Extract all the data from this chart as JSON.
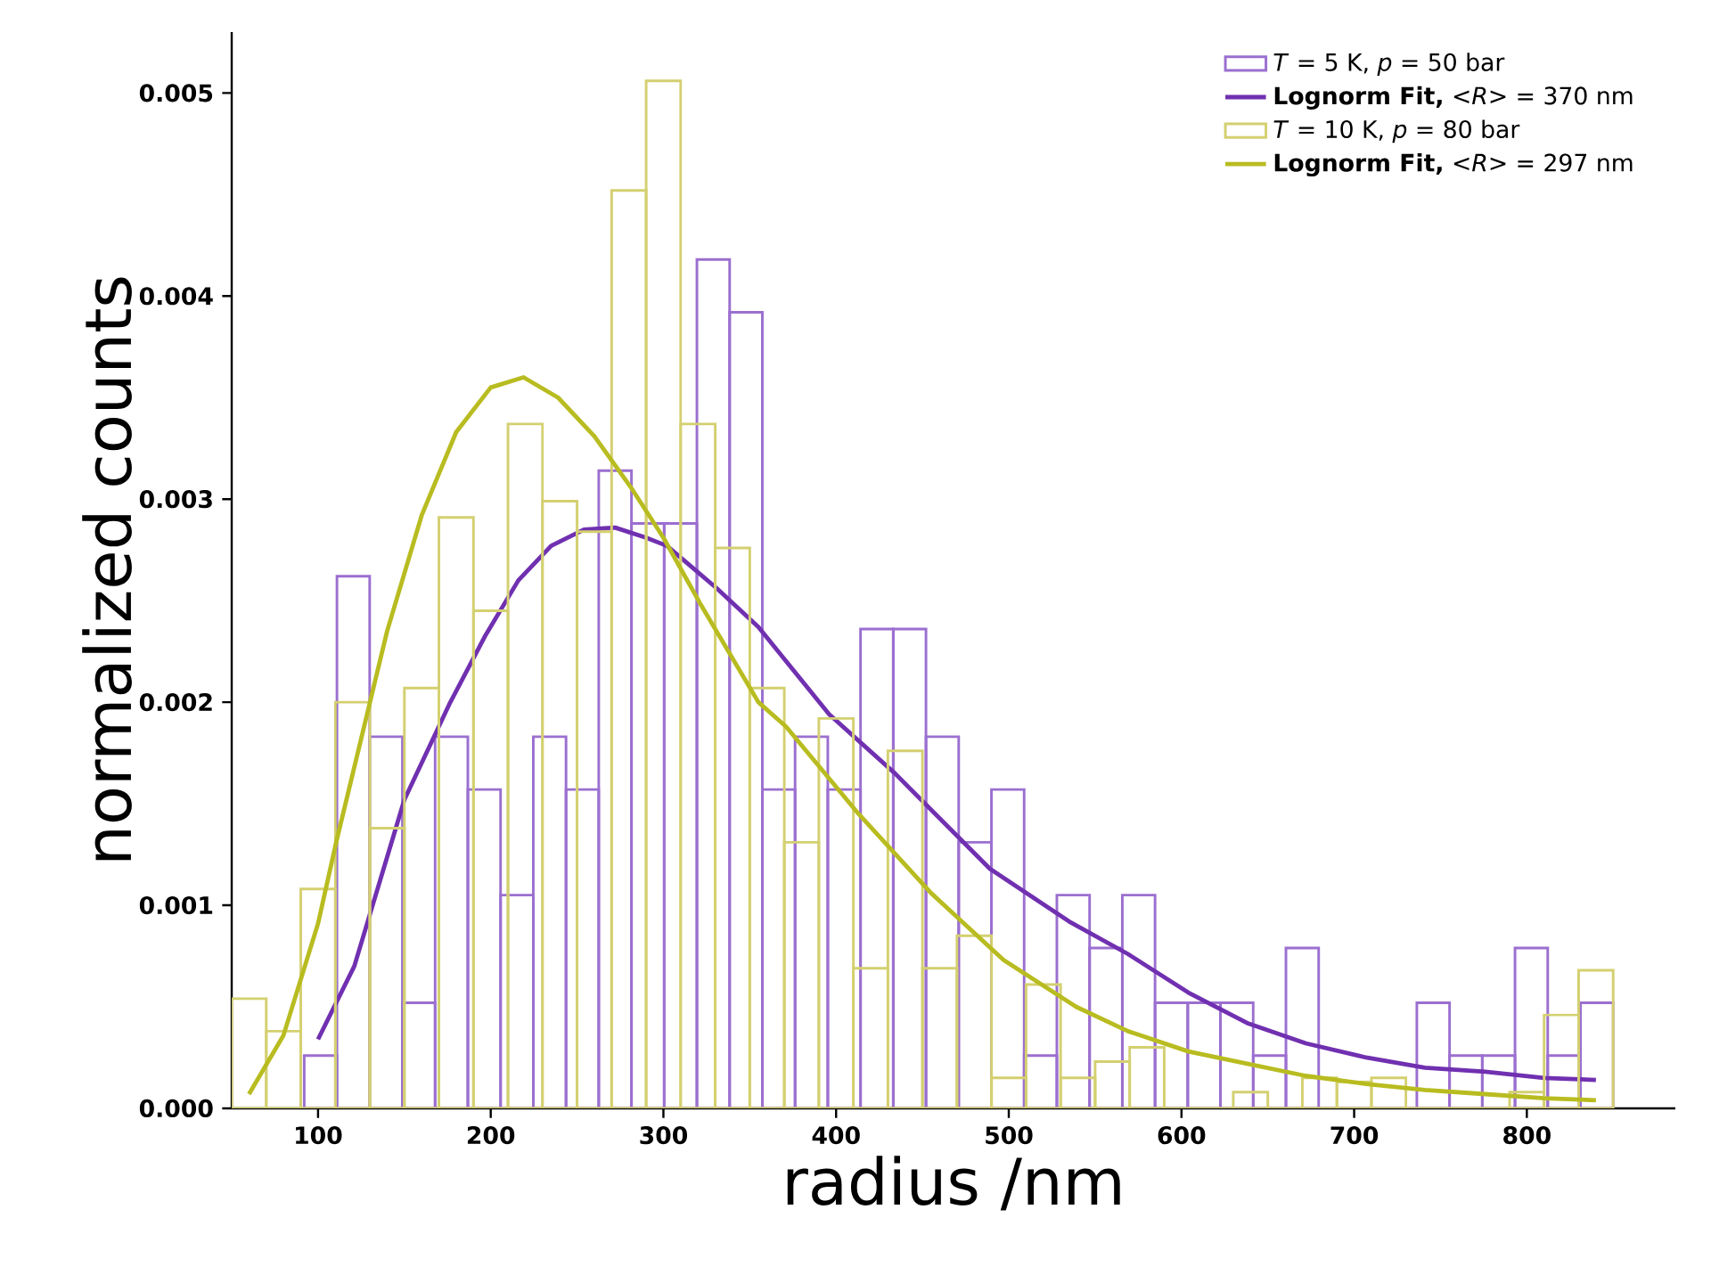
{
  "chart_data": {
    "type": "histogram",
    "xlabel": "radius /nm",
    "ylabel": "normalized counts",
    "xlim": [
      50,
      886
    ],
    "ylim": [
      0,
      0.0053
    ],
    "xticks": [
      100,
      200,
      300,
      400,
      500,
      600,
      700,
      800
    ],
    "yticks": [
      {
        "value": 0,
        "label": "0.000"
      },
      {
        "value": 0.001,
        "label": "0.001"
      },
      {
        "value": 0.002,
        "label": "0.002"
      },
      {
        "value": 0.003,
        "label": "0.003"
      },
      {
        "value": 0.004,
        "label": "0.004"
      },
      {
        "value": 0.005,
        "label": "0.005"
      }
    ],
    "legend": "top right",
    "marker": "none",
    "line_style": "solid",
    "series": [
      {
        "name": "*T* = 5 K, *p* = 50 bar",
        "color": "#9b6fd0",
        "bins": [
          92,
          110.95,
          129.9,
          148.85,
          167.8,
          186.75,
          205.7,
          224.65,
          243.6,
          262.55,
          281.5,
          300.45,
          319.4,
          338.35,
          357.3,
          376.25,
          395.2,
          414.15,
          433.1,
          452.05,
          471,
          489.95,
          508.9,
          527.85,
          546.8,
          565.75,
          584.7,
          603.65,
          622.6,
          641.55,
          660.5,
          679.45,
          698.4,
          717.35,
          736.3,
          755.25,
          774.2,
          793.15,
          812.1,
          831.05,
          850
        ],
        "values": [
          0.00026,
          0.00262,
          0.00183,
          0.00052,
          0.00183,
          0.00157,
          0.00105,
          0.00183,
          0.00157,
          0.00314,
          0.00288,
          0.00288,
          0.00418,
          0.00392,
          0.00157,
          0.00183,
          0.00157,
          0.00236,
          0.00236,
          0.00183,
          0.00131,
          0.00157,
          0.00026,
          0.00105,
          0.00079,
          0.00105,
          0.00052,
          0.00052,
          0.00052,
          0.00026,
          0.00079,
          0,
          0,
          0,
          0.00052,
          0.00026,
          0.00026,
          0.00079,
          0.00026,
          0.00052
        ]
      },
      {
        "name": "**Lognorm Fit,** <*R*> = 370 nm",
        "type": "line",
        "color": "#7030b0",
        "x": [
          100,
          121,
          150,
          176,
          197,
          216,
          235,
          254,
          272,
          290,
          302,
          331,
          355,
          396,
          434,
          489,
          535,
          569,
          604,
          638,
          672,
          707,
          741,
          776,
          810,
          840
        ],
        "values": [
          0.00034,
          0.0007,
          0.00152,
          0.00199,
          0.00233,
          0.0026,
          0.00277,
          0.00285,
          0.00286,
          0.00281,
          0.00277,
          0.00256,
          0.00237,
          0.00194,
          0.00165,
          0.00118,
          0.00092,
          0.00076,
          0.00057,
          0.00042,
          0.00032,
          0.00025,
          0.0002,
          0.00018,
          0.00015,
          0.00014
        ]
      },
      {
        "name": "*T* = 10 K,  *p* = 80 bar",
        "color": "#d4d070",
        "bins": [
          50,
          70,
          90,
          110,
          130,
          150,
          170,
          190,
          210,
          230,
          250,
          270,
          290,
          310,
          330,
          350,
          370,
          390,
          410,
          430,
          450,
          470,
          490,
          510,
          530,
          550,
          570,
          590,
          610,
          630,
          650,
          670,
          690,
          710,
          730,
          750,
          770,
          790,
          810,
          830,
          850
        ],
        "values": [
          0.00054,
          0.00038,
          0.00108,
          0.002,
          0.00138,
          0.00207,
          0.00291,
          0.00245,
          0.00337,
          0.00299,
          0.00284,
          0.00452,
          0.00506,
          0.00337,
          0.00276,
          0.00207,
          0.00131,
          0.00192,
          0.00069,
          0.00176,
          0.00069,
          0.00085,
          0.00015,
          0.00061,
          0.00015,
          0.00023,
          0.0003,
          0,
          0,
          8e-05,
          0,
          0.00015,
          0.00013,
          0.00015,
          0,
          0,
          0,
          8e-05,
          0.00046,
          0.00068
        ]
      },
      {
        "name": "**Lognorm Fit,** <*R*> = 297 nm",
        "type": "line",
        "color": "#b8bc20",
        "x": [
          60,
          80,
          100,
          110.5,
          140,
          160,
          180,
          200,
          219,
          239,
          260,
          281,
          300,
          321,
          355,
          371,
          413,
          455,
          497,
          539,
          569,
          604,
          638,
          672,
          707,
          741,
          776,
          810,
          840
        ],
        "values": [
          7e-05,
          0.00036,
          0.00091,
          0.00131,
          0.00235,
          0.00292,
          0.00333,
          0.00355,
          0.0036,
          0.0035,
          0.00331,
          0.00306,
          0.00281,
          0.00249,
          0.002,
          0.00188,
          0.00145,
          0.00106,
          0.00073,
          0.0005,
          0.00038,
          0.00028,
          0.00022,
          0.00016,
          0.00012,
          9e-05,
          7e-05,
          5e-05,
          4e-05
        ]
      }
    ]
  }
}
